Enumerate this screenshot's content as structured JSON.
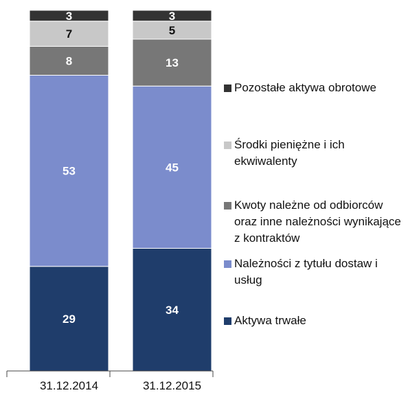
{
  "chart_data": {
    "type": "stacked_bar",
    "categories": [
      "31.12.2014",
      "31.12.2015"
    ],
    "series": [
      {
        "name": "Aktywa trwałe",
        "color": "#1f3d6b",
        "values": [
          29,
          34
        ]
      },
      {
        "name": "Należności z tytułu dostaw i usług",
        "color": "#7b8ccc",
        "values": [
          53,
          45
        ]
      },
      {
        "name": "Kwoty należne od odbiorców oraz inne należności wynikające z kontraktów",
        "color": "#777777",
        "values": [
          8,
          13
        ]
      },
      {
        "name": "Środki pieniężne i ich ekwiwalenty",
        "color": "#c8c8c8",
        "values": [
          7,
          5
        ]
      },
      {
        "name": "Pozostałe aktywa obrotowe",
        "color": "#333333",
        "values": [
          3,
          3
        ]
      }
    ],
    "ylim": [
      0,
      100
    ]
  }
}
